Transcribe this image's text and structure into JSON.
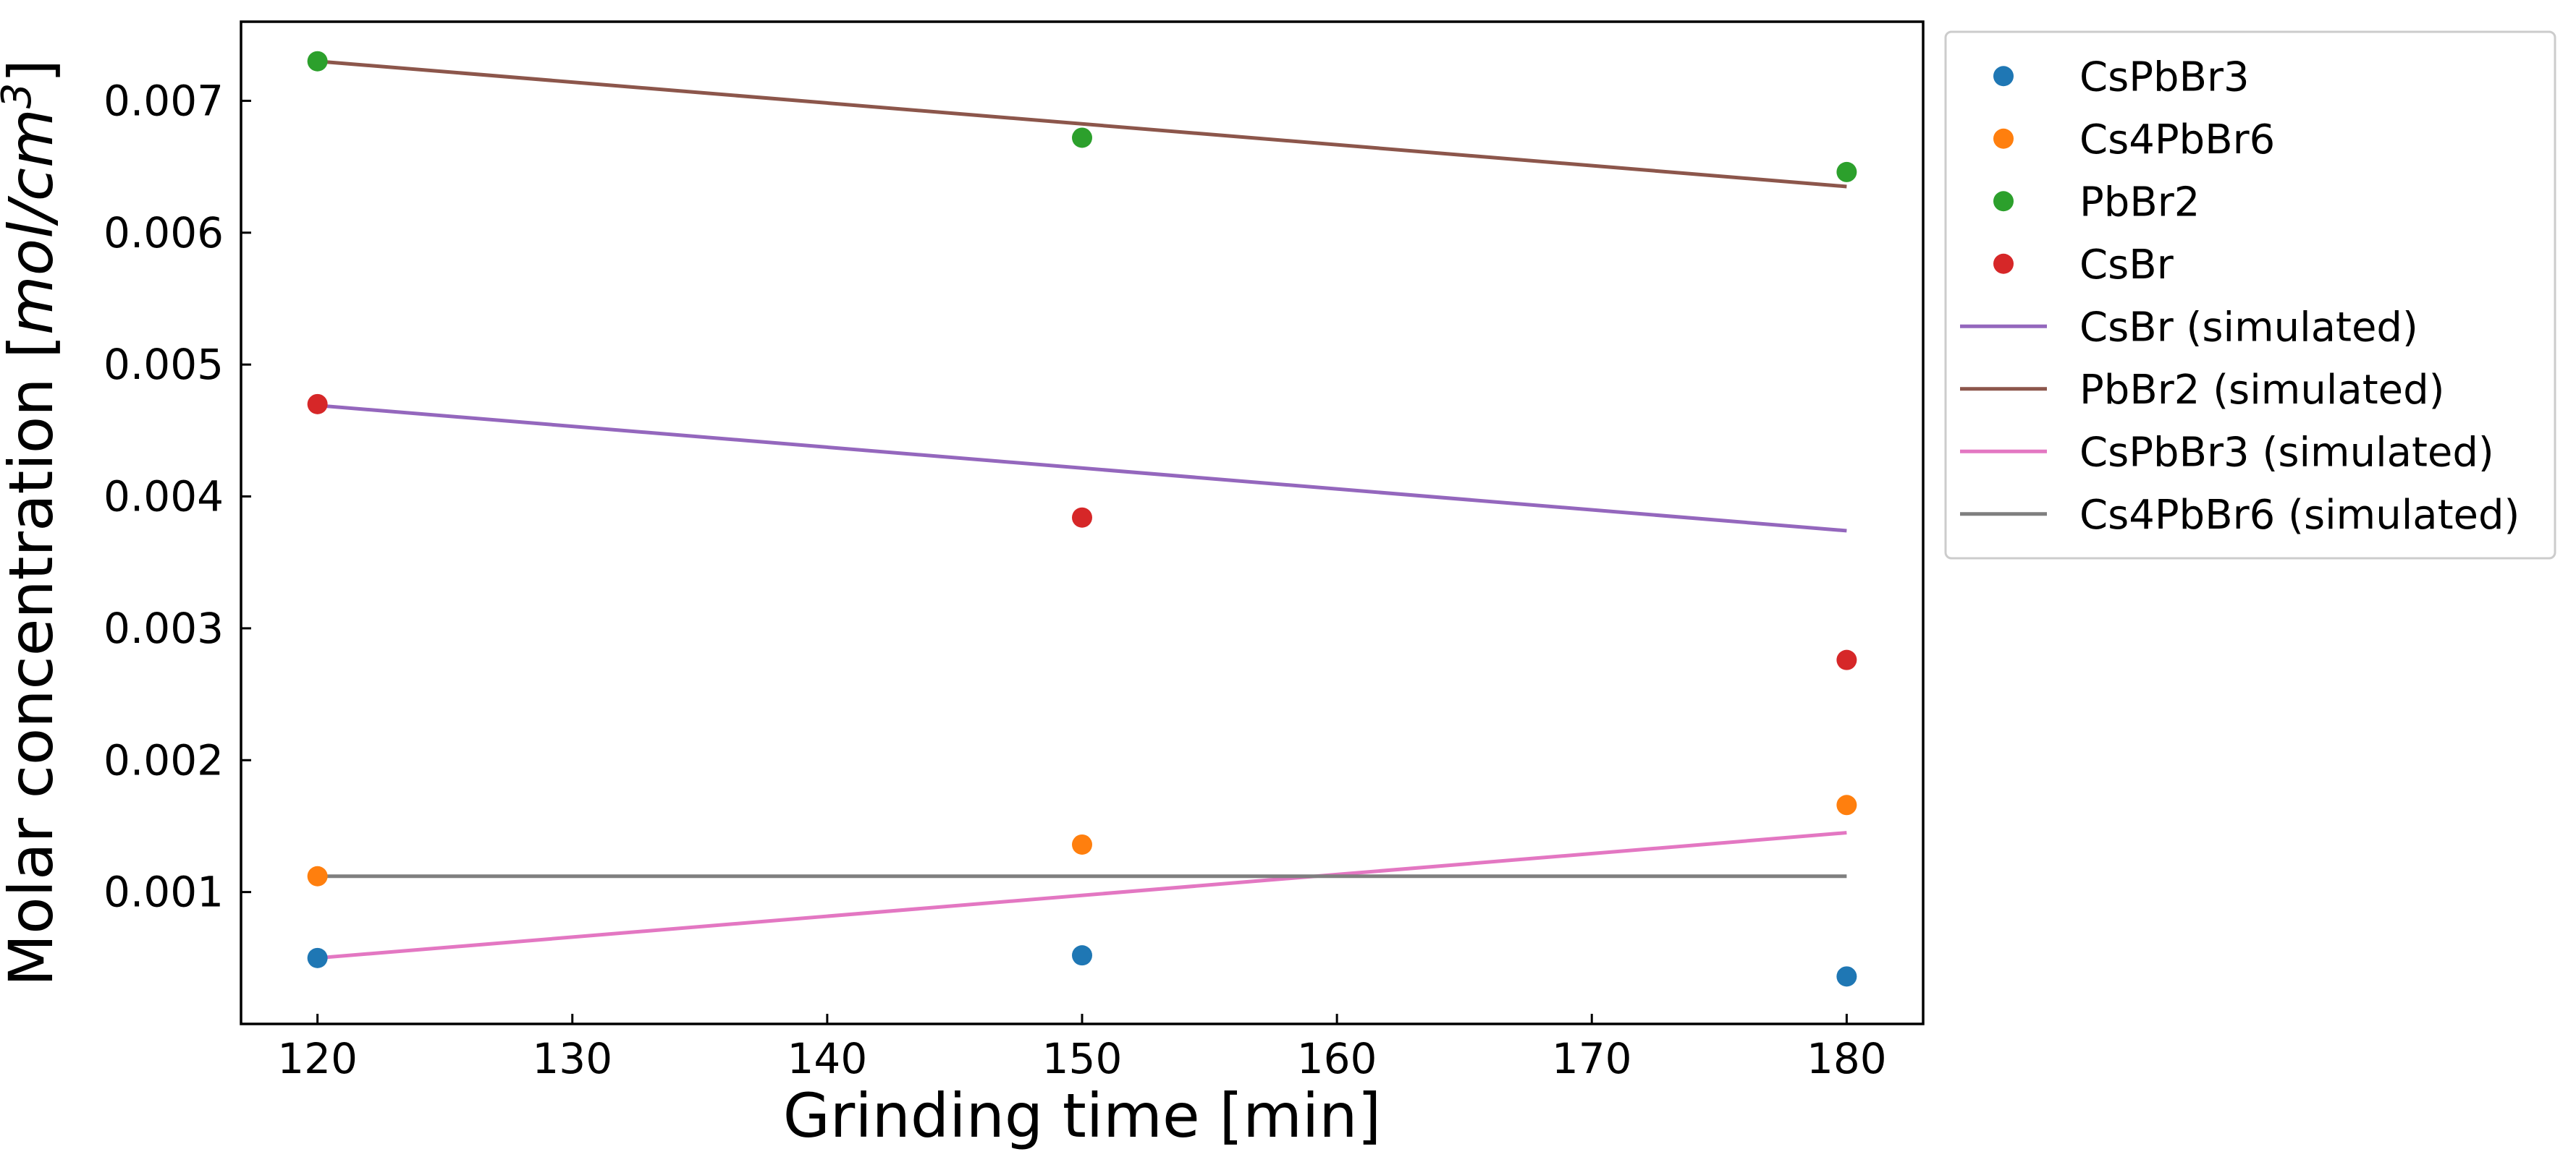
{
  "chart_data": {
    "type": "scatter",
    "title": "",
    "xlabel": "Grinding time [min]",
    "ylabel_prefix": "Molar concentration [",
    "ylabel_unit_main": "mol/cm",
    "ylabel_unit_sup": "3",
    "ylabel_suffix": "]",
    "xlim": [
      117,
      183
    ],
    "ylim": [
      0.0,
      0.0076
    ],
    "xticks": [
      120,
      130,
      140,
      150,
      160,
      170,
      180
    ],
    "xtick_labels": [
      "120",
      "130",
      "140",
      "150",
      "160",
      "170",
      "180"
    ],
    "yticks": [
      0.001,
      0.002,
      0.003,
      0.004,
      0.005,
      0.006,
      0.007
    ],
    "ytick_labels": [
      "0.001",
      "0.002",
      "0.003",
      "0.004",
      "0.005",
      "0.006",
      "0.007"
    ],
    "grid": false,
    "legend_position": "outside upper right",
    "series": [
      {
        "name": "CsPbBr3",
        "kind": "scatter",
        "color": "#1f77b4",
        "x": [
          120,
          150,
          180
        ],
        "y": [
          0.0005,
          0.00052,
          0.00036
        ]
      },
      {
        "name": "Cs4PbBr6",
        "kind": "scatter",
        "color": "#ff7f0e",
        "x": [
          120,
          150,
          180
        ],
        "y": [
          0.00112,
          0.00136,
          0.00166
        ]
      },
      {
        "name": "PbBr2",
        "kind": "scatter",
        "color": "#2ca02c",
        "x": [
          120,
          150,
          180
        ],
        "y": [
          0.0073,
          0.00672,
          0.00646
        ]
      },
      {
        "name": "CsBr",
        "kind": "scatter",
        "color": "#d62728",
        "x": [
          120,
          150,
          180
        ],
        "y": [
          0.0047,
          0.00384,
          0.00276
        ]
      },
      {
        "name": "CsBr (simulated)",
        "kind": "line",
        "color": "#9467bd",
        "x": [
          120,
          180
        ],
        "y": [
          0.00469,
          0.00374
        ]
      },
      {
        "name": "PbBr2 (simulated)",
        "kind": "line",
        "color": "#8c564b",
        "x": [
          120,
          180
        ],
        "y": [
          0.0073,
          0.00635
        ]
      },
      {
        "name": "CsPbBr3 (simulated)",
        "kind": "line",
        "color": "#e377c2",
        "x": [
          120,
          180
        ],
        "y": [
          0.0005,
          0.00145
        ]
      },
      {
        "name": "Cs4PbBr6 (simulated)",
        "kind": "line",
        "color": "#7f7f7f",
        "x": [
          120,
          180
        ],
        "y": [
          0.00112,
          0.00112
        ]
      }
    ]
  }
}
